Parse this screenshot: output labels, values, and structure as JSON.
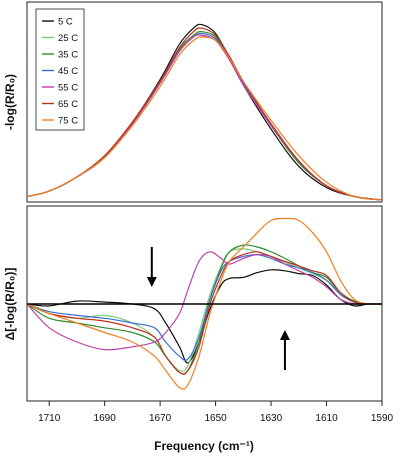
{
  "chart_data": [
    {
      "panel": "top",
      "type": "line",
      "ylabel": "-log(R/R₀)",
      "xlabel": "",
      "xlim": [
        1718,
        1590
      ],
      "ylim": [
        0,
        1.05
      ],
      "x_ticks": [],
      "legend_position": "top-left",
      "series": [
        {
          "name": "5 C",
          "color": "#111111",
          "x": [
            1718,
            1710,
            1700,
            1690,
            1680,
            1670,
            1663,
            1658,
            1655,
            1650,
            1645,
            1640,
            1630,
            1620,
            1610,
            1600,
            1590
          ],
          "y": [
            0.02,
            0.05,
            0.13,
            0.25,
            0.44,
            0.68,
            0.88,
            0.97,
            0.99,
            0.94,
            0.8,
            0.65,
            0.4,
            0.19,
            0.07,
            0.02,
            0.0
          ]
        },
        {
          "name": "25 C",
          "color": "#7ad07a",
          "x": [
            1718,
            1710,
            1700,
            1690,
            1680,
            1670,
            1663,
            1658,
            1655,
            1650,
            1645,
            1640,
            1630,
            1620,
            1610,
            1600,
            1590
          ],
          "y": [
            0.02,
            0.05,
            0.13,
            0.25,
            0.44,
            0.67,
            0.86,
            0.95,
            0.97,
            0.93,
            0.8,
            0.66,
            0.42,
            0.21,
            0.08,
            0.02,
            0.0
          ]
        },
        {
          "name": "35 C",
          "color": "#2e8b2e",
          "x": [
            1718,
            1710,
            1700,
            1690,
            1680,
            1670,
            1663,
            1658,
            1655,
            1650,
            1645,
            1640,
            1630,
            1620,
            1610,
            1600,
            1590
          ],
          "y": [
            0.02,
            0.05,
            0.13,
            0.24,
            0.43,
            0.66,
            0.85,
            0.93,
            0.95,
            0.92,
            0.8,
            0.66,
            0.42,
            0.21,
            0.08,
            0.02,
            0.0
          ]
        },
        {
          "name": "45 C",
          "color": "#3a6fd0",
          "x": [
            1718,
            1710,
            1700,
            1690,
            1680,
            1670,
            1663,
            1658,
            1655,
            1650,
            1645,
            1640,
            1630,
            1620,
            1610,
            1600,
            1590
          ],
          "y": [
            0.02,
            0.05,
            0.13,
            0.24,
            0.43,
            0.66,
            0.84,
            0.92,
            0.94,
            0.91,
            0.8,
            0.66,
            0.43,
            0.22,
            0.08,
            0.02,
            0.0
          ]
        },
        {
          "name": "55 C",
          "color": "#c040a8",
          "x": [
            1718,
            1710,
            1700,
            1690,
            1680,
            1670,
            1663,
            1658,
            1655,
            1650,
            1645,
            1640,
            1630,
            1620,
            1610,
            1600,
            1590
          ],
          "y": [
            0.02,
            0.05,
            0.13,
            0.24,
            0.43,
            0.66,
            0.84,
            0.92,
            0.93,
            0.9,
            0.79,
            0.65,
            0.42,
            0.22,
            0.08,
            0.02,
            0.0
          ]
        },
        {
          "name": "65 C",
          "color": "#c03020",
          "x": [
            1718,
            1710,
            1700,
            1690,
            1680,
            1670,
            1663,
            1658,
            1655,
            1650,
            1645,
            1640,
            1630,
            1620,
            1610,
            1600,
            1590
          ],
          "y": [
            0.02,
            0.05,
            0.13,
            0.25,
            0.44,
            0.67,
            0.86,
            0.95,
            0.97,
            0.93,
            0.81,
            0.67,
            0.43,
            0.22,
            0.08,
            0.02,
            0.0
          ]
        },
        {
          "name": "75 C",
          "color": "#f08020",
          "x": [
            1718,
            1710,
            1700,
            1690,
            1680,
            1670,
            1663,
            1658,
            1655,
            1650,
            1645,
            1640,
            1630,
            1620,
            1610,
            1600,
            1590
          ],
          "y": [
            0.02,
            0.05,
            0.13,
            0.24,
            0.42,
            0.64,
            0.82,
            0.9,
            0.92,
            0.9,
            0.8,
            0.67,
            0.45,
            0.25,
            0.1,
            0.02,
            0.0
          ]
        }
      ]
    },
    {
      "panel": "bottom",
      "type": "line",
      "ylabel": "Δ[-log(R/R₀)]",
      "xlabel": "Frequency (cm⁻¹)",
      "xlim": [
        1718,
        1590
      ],
      "ylim": [
        -1.0,
        1.0
      ],
      "x_ticks": [
        1710,
        1690,
        1670,
        1650,
        1630,
        1610,
        1590
      ],
      "baseline": 0,
      "annotations": [
        {
          "type": "arrow",
          "direction": "down",
          "x": 1673
        },
        {
          "type": "arrow",
          "direction": "up",
          "x": 1625
        }
      ],
      "series": [
        {
          "name": "5 C",
          "color": "#111111",
          "x": [
            1718,
            1710,
            1700,
            1690,
            1680,
            1672,
            1668,
            1663,
            1660,
            1656,
            1652,
            1648,
            1645,
            1640,
            1635,
            1630,
            1625,
            1620,
            1615,
            1610,
            1605,
            1600,
            1595,
            1590
          ],
          "y": [
            0,
            -0.02,
            0.03,
            0.02,
            0,
            -0.05,
            -0.2,
            -0.45,
            -0.62,
            -0.4,
            -0.05,
            0.2,
            0.27,
            0.28,
            0.33,
            0.36,
            0.35,
            0.32,
            0.3,
            0.2,
            0.05,
            -0.02,
            0,
            0
          ]
        },
        {
          "name": "25 C",
          "color": "#7ad07a",
          "x": [
            1718,
            1710,
            1700,
            1690,
            1680,
            1672,
            1668,
            1663,
            1660,
            1656,
            1652,
            1648,
            1645,
            1640,
            1635,
            1630,
            1625,
            1620,
            1615,
            1610,
            1605,
            1600,
            1595,
            1590
          ],
          "y": [
            0,
            -0.1,
            -0.15,
            -0.12,
            -0.2,
            -0.35,
            -0.55,
            -0.7,
            -0.65,
            -0.3,
            0.1,
            0.4,
            0.55,
            0.58,
            0.55,
            0.5,
            0.44,
            0.38,
            0.32,
            0.25,
            0.12,
            0.03,
            0,
            0
          ]
        },
        {
          "name": "35 C",
          "color": "#2e8b2e",
          "x": [
            1718,
            1710,
            1700,
            1690,
            1680,
            1672,
            1668,
            1663,
            1660,
            1656,
            1652,
            1648,
            1645,
            1640,
            1635,
            1630,
            1625,
            1620,
            1615,
            1610,
            1605,
            1600,
            1595,
            1590
          ],
          "y": [
            0,
            -0.15,
            -0.2,
            -0.25,
            -0.3,
            -0.4,
            -0.55,
            -0.72,
            -0.7,
            -0.4,
            0.05,
            0.38,
            0.55,
            0.62,
            0.6,
            0.55,
            0.48,
            0.4,
            0.33,
            0.28,
            0.12,
            0.03,
            0,
            0
          ]
        },
        {
          "name": "45 C",
          "color": "#3a6fd0",
          "x": [
            1718,
            1710,
            1700,
            1690,
            1680,
            1672,
            1668,
            1663,
            1660,
            1656,
            1652,
            1648,
            1645,
            1640,
            1635,
            1630,
            1625,
            1620,
            1615,
            1610,
            1605,
            1600,
            1595,
            1590
          ],
          "y": [
            0,
            -0.08,
            -0.12,
            -0.15,
            -0.2,
            -0.25,
            -0.4,
            -0.55,
            -0.58,
            -0.35,
            0.05,
            0.35,
            0.45,
            0.5,
            0.52,
            0.48,
            0.42,
            0.38,
            0.33,
            0.25,
            0.1,
            0.02,
            0,
            0
          ]
        },
        {
          "name": "55 C",
          "color": "#c040a8",
          "x": [
            1718,
            1710,
            1700,
            1690,
            1680,
            1672,
            1668,
            1663,
            1660,
            1656,
            1652,
            1648,
            1645,
            1640,
            1635,
            1630,
            1625,
            1620,
            1615,
            1610,
            1605,
            1600,
            1595,
            1590
          ],
          "y": [
            0,
            -0.25,
            -0.4,
            -0.48,
            -0.45,
            -0.4,
            -0.3,
            -0.1,
            0.15,
            0.45,
            0.55,
            0.48,
            0.42,
            0.48,
            0.52,
            0.5,
            0.42,
            0.35,
            0.28,
            0.18,
            0.05,
            0,
            0,
            0
          ]
        },
        {
          "name": "65 C",
          "color": "#c03020",
          "x": [
            1718,
            1710,
            1700,
            1690,
            1680,
            1672,
            1668,
            1663,
            1660,
            1656,
            1652,
            1648,
            1645,
            1640,
            1635,
            1630,
            1625,
            1620,
            1615,
            1610,
            1605,
            1600,
            1595,
            1590
          ],
          "y": [
            0,
            -0.1,
            -0.15,
            -0.18,
            -0.25,
            -0.35,
            -0.55,
            -0.72,
            -0.7,
            -0.45,
            0.0,
            0.3,
            0.45,
            0.52,
            0.55,
            0.5,
            0.45,
            0.4,
            0.35,
            0.3,
            0.12,
            0.02,
            0,
            0
          ]
        },
        {
          "name": "75 C",
          "color": "#f08020",
          "x": [
            1718,
            1710,
            1700,
            1690,
            1680,
            1672,
            1668,
            1663,
            1660,
            1656,
            1652,
            1648,
            1645,
            1640,
            1635,
            1630,
            1625,
            1620,
            1615,
            1610,
            1605,
            1600,
            1595,
            1590
          ],
          "y": [
            0,
            -0.1,
            -0.2,
            -0.3,
            -0.4,
            -0.55,
            -0.7,
            -0.88,
            -0.85,
            -0.55,
            -0.1,
            0.25,
            0.45,
            0.6,
            0.75,
            0.88,
            0.9,
            0.88,
            0.75,
            0.55,
            0.25,
            0.05,
            0,
            0
          ]
        }
      ]
    }
  ]
}
